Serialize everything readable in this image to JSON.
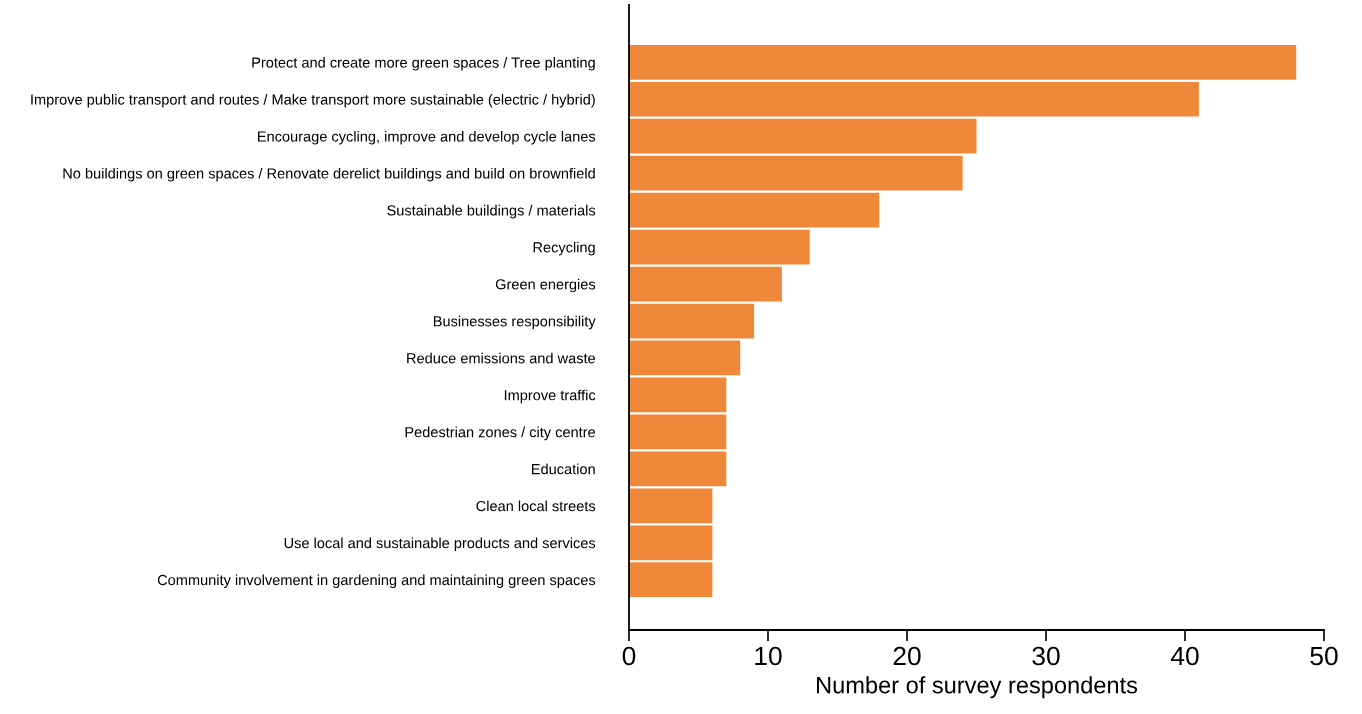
{
  "chart_data": {
    "type": "bar",
    "orientation": "horizontal",
    "xlabel": "Number of survey respondents",
    "categories": [
      "Protect and create more green spaces / Tree planting",
      "Improve public transport and routes / Make transport more sustainable (electric / hybrid)",
      "Encourage cycling, improve and develop cycle lanes",
      "No buildings on green spaces / Renovate derelict buildings and build on brownfield",
      "Sustainable buildings / materials",
      "Recycling",
      "Green energies",
      "Businesses responsibility",
      "Reduce emissions and waste",
      "Improve traffic",
      "Pedestrian zones / city centre",
      "Education",
      "Clean local streets",
      "Use local and sustainable products and services",
      "Community involvement in gardening and maintaining green spaces"
    ],
    "values": [
      48,
      41,
      25,
      24,
      18,
      13,
      11,
      9,
      8,
      7,
      7,
      7,
      6,
      6,
      6
    ],
    "color": "#f0883a",
    "xlim": [
      0,
      50
    ],
    "xticks": [
      0,
      10,
      20,
      30,
      40,
      50
    ],
    "grid": false,
    "legend": false
  }
}
